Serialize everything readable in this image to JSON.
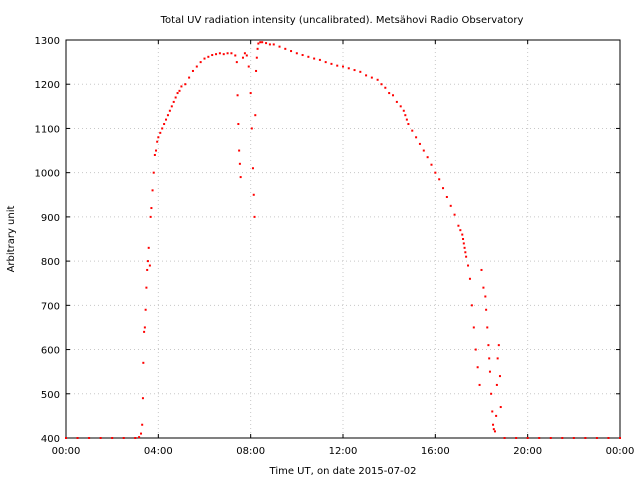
{
  "chart_data": {
    "type": "scatter",
    "title": "Total UV radiation intensity (uncalibrated). Metsähovi Radio Observatory",
    "xlabel": "Time UT, on date 2015-07-02",
    "ylabel": "Arbitrary unit",
    "xlim": [
      "00:00",
      "24:00"
    ],
    "ylim": [
      400,
      1300
    ],
    "x_ticks": [
      "00:00",
      "04:00",
      "08:00",
      "12:00",
      "16:00",
      "20:00",
      "00:00"
    ],
    "y_ticks": [
      400,
      500,
      600,
      700,
      800,
      900,
      1000,
      1100,
      1200,
      1300
    ],
    "grid": true,
    "marker_color": "#ff0000",
    "series": [
      {
        "x": [
          "00:00",
          "00:30",
          "01:00",
          "01:30",
          "02:00",
          "02:30",
          "03:00",
          "03:10",
          "03:15",
          "03:18",
          "03:20",
          "03:21",
          "03:23",
          "03:25",
          "03:27",
          "03:29",
          "03:31",
          "03:33",
          "03:35",
          "03:38",
          "03:40",
          "03:42",
          "03:45",
          "03:48",
          "03:51",
          "03:54",
          "03:57",
          "04:00",
          "04:05",
          "04:10",
          "04:15",
          "04:20",
          "04:25",
          "04:30",
          "04:35",
          "04:40",
          "04:45",
          "04:50",
          "04:55",
          "05:00",
          "05:10",
          "05:20",
          "05:30",
          "05:40",
          "05:50",
          "06:00",
          "06:10",
          "06:20",
          "06:30",
          "06:40",
          "06:50",
          "07:00",
          "07:10",
          "07:20",
          "07:24",
          "07:26",
          "07:28",
          "07:30",
          "07:32",
          "07:34",
          "07:40",
          "07:45",
          "07:50",
          "07:55",
          "08:00",
          "08:03",
          "08:06",
          "08:08",
          "08:10",
          "08:12",
          "08:14",
          "08:16",
          "08:18",
          "08:20",
          "08:25",
          "08:30",
          "08:40",
          "08:50",
          "09:00",
          "09:15",
          "09:30",
          "09:45",
          "10:00",
          "10:15",
          "10:30",
          "10:45",
          "11:00",
          "11:15",
          "11:30",
          "11:45",
          "12:00",
          "12:15",
          "12:30",
          "12:45",
          "13:00",
          "13:15",
          "13:30",
          "13:40",
          "13:50",
          "14:00",
          "14:10",
          "14:20",
          "14:30",
          "14:38",
          "14:42",
          "14:46",
          "14:50",
          "15:00",
          "15:10",
          "15:20",
          "15:30",
          "15:40",
          "15:50",
          "16:00",
          "16:10",
          "16:20",
          "16:30",
          "16:40",
          "16:50",
          "17:00",
          "17:05",
          "17:10",
          "17:12",
          "17:14",
          "17:16",
          "17:18",
          "17:20",
          "17:25",
          "17:30",
          "17:35",
          "17:40",
          "17:45",
          "17:50",
          "17:55",
          "18:00",
          "18:05",
          "18:10",
          "18:12",
          "18:15",
          "18:18",
          "18:20",
          "18:22",
          "18:25",
          "18:28",
          "18:30",
          "18:32",
          "18:35",
          "18:38",
          "18:40",
          "18:42",
          "18:45",
          "18:48",
          "18:50",
          "19:00",
          "19:30",
          "20:00",
          "20:30",
          "21:00",
          "21:30",
          "22:00",
          "22:30",
          "23:00",
          "23:30",
          "24:00"
        ],
        "y": [
          400,
          400,
          400,
          400,
          400,
          400,
          400,
          402,
          410,
          430,
          490,
          570,
          640,
          650,
          690,
          740,
          780,
          800,
          830,
          790,
          900,
          920,
          960,
          1000,
          1040,
          1050,
          1070,
          1080,
          1090,
          1100,
          1110,
          1120,
          1130,
          1140,
          1150,
          1160,
          1170,
          1180,
          1185,
          1195,
          1200,
          1215,
          1230,
          1240,
          1250,
          1258,
          1262,
          1266,
          1268,
          1270,
          1268,
          1270,
          1270,
          1265,
          1250,
          1175,
          1110,
          1050,
          1020,
          990,
          1260,
          1270,
          1265,
          1240,
          1180,
          1100,
          1010,
          950,
          900,
          1130,
          1230,
          1260,
          1280,
          1292,
          1295,
          1295,
          1293,
          1290,
          1290,
          1285,
          1280,
          1275,
          1270,
          1266,
          1262,
          1258,
          1255,
          1250,
          1246,
          1242,
          1240,
          1236,
          1232,
          1228,
          1220,
          1215,
          1210,
          1200,
          1192,
          1180,
          1175,
          1160,
          1150,
          1140,
          1130,
          1120,
          1110,
          1095,
          1080,
          1065,
          1050,
          1035,
          1018,
          1000,
          985,
          965,
          945,
          925,
          905,
          880,
          870,
          860,
          850,
          840,
          830,
          820,
          810,
          790,
          760,
          700,
          650,
          600,
          560,
          520,
          780,
          740,
          720,
          690,
          650,
          610,
          580,
          550,
          500,
          460,
          430,
          420,
          415,
          450,
          520,
          580,
          610,
          540,
          470,
          400,
          400,
          400,
          400,
          400,
          400,
          400,
          400,
          400,
          400,
          400
        ]
      }
    ]
  }
}
